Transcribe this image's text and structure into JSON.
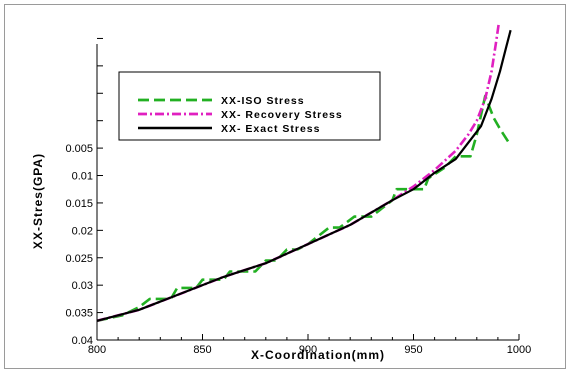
{
  "chart_data": {
    "type": "line",
    "title": "",
    "xlabel": "X-Coordination(mm)",
    "ylabel": "XX-Stres(GPA)",
    "xlim": [
      800,
      1000
    ],
    "ylim": [
      0.04,
      -0.018
    ],
    "x_ticks": [
      800,
      850,
      900,
      950,
      1000
    ],
    "x_tick_labels": [
      "800",
      "850",
      "900",
      "950",
      "1000"
    ],
    "y_ticks": [
      0.005,
      0.01,
      0.015,
      0.02,
      0.025,
      0.03,
      0.035,
      0.04
    ],
    "y_tick_labels": [
      "0.005",
      "0.01",
      "0.015",
      "0.02",
      "0.025",
      "0.03",
      "0.035",
      "0.04"
    ],
    "grid": false,
    "legend_position": "upper-left",
    "series": [
      {
        "name": "XX-ISO Stress",
        "color": "#22b022",
        "dash": "dashed",
        "x": [
          800,
          812,
          820,
          825,
          835,
          838,
          847,
          850,
          860,
          863,
          875,
          880,
          885,
          890,
          895,
          900,
          905,
          910,
          915,
          922,
          925,
          930,
          935,
          940,
          942,
          950,
          955,
          957,
          965,
          970,
          975,
          977,
          980,
          984,
          988,
          991,
          996
        ],
        "y": [
          0.0365,
          0.0355,
          0.034,
          0.0325,
          0.0325,
          0.0305,
          0.0305,
          0.029,
          0.029,
          0.0275,
          0.0275,
          0.0255,
          0.0255,
          0.0235,
          0.0235,
          0.0225,
          0.021,
          0.0195,
          0.0195,
          0.0175,
          0.0175,
          0.0175,
          0.016,
          0.0145,
          0.0125,
          0.0125,
          0.0125,
          0.0105,
          0.0085,
          0.0065,
          0.0065,
          0.0065,
          0.0025,
          -0.0045,
          -0.0005,
          0.0015,
          0.0045
        ]
      },
      {
        "name": "XX- Recovery Stress",
        "color": "#e020c0",
        "dash": "dash-dot",
        "x": [
          800,
          820,
          840,
          860,
          880,
          900,
          920,
          940,
          950,
          960,
          970,
          976,
          980,
          984,
          987,
          989,
          990.5
        ],
        "y": [
          0.0365,
          0.0345,
          0.0315,
          0.0285,
          0.026,
          0.0225,
          0.019,
          0.0145,
          0.012,
          0.009,
          0.0055,
          0.0025,
          0.0,
          -0.004,
          -0.009,
          -0.014,
          -0.018
        ]
      },
      {
        "name": "XX- Exact Stress",
        "color": "#000000",
        "dash": "solid",
        "x": [
          800,
          820,
          840,
          860,
          880,
          900,
          920,
          940,
          950,
          960,
          970,
          976,
          982,
          987,
          991,
          994,
          996
        ],
        "y": [
          0.0365,
          0.0345,
          0.0315,
          0.0285,
          0.026,
          0.0225,
          0.019,
          0.0145,
          0.0125,
          0.0095,
          0.007,
          0.004,
          0.001,
          -0.004,
          -0.009,
          -0.0135,
          -0.0165
        ]
      }
    ]
  }
}
